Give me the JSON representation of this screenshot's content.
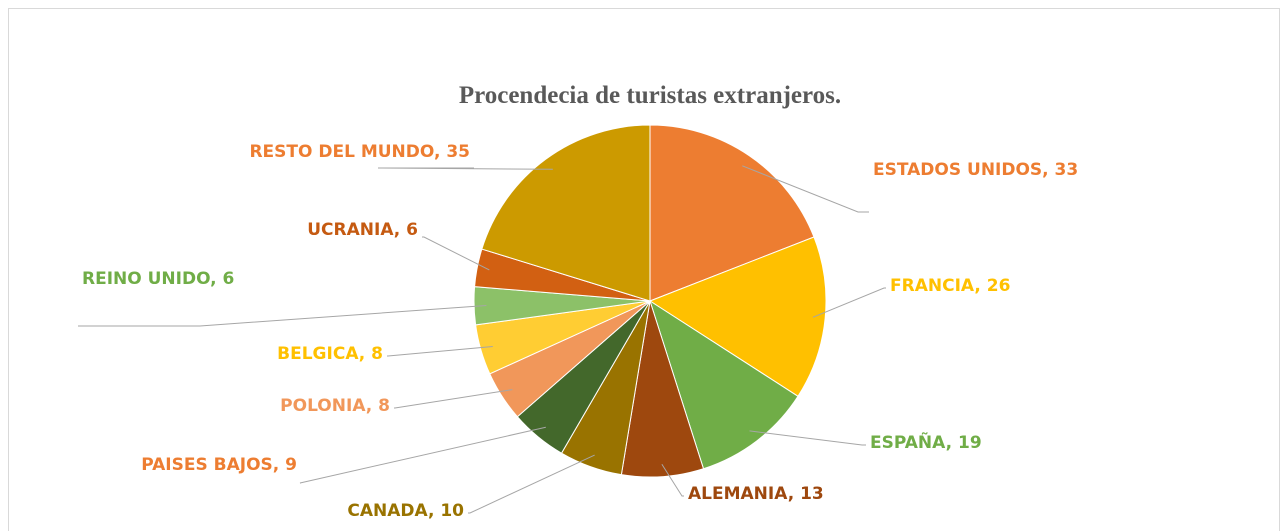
{
  "chart_data": {
    "type": "pie",
    "title": "Procendecia de turistas extranjeros.",
    "values": [
      33,
      26,
      19,
      13,
      10,
      9,
      8,
      8,
      6,
      6,
      35
    ],
    "value_labels": [
      "ESTADOS UNIDOS, 33",
      "FRANCIA, 26",
      "ESPAÑA, 19",
      "ALEMANIA, 13",
      "CANADA, 10",
      "PAISES BAJOS, 9",
      "POLONIA, 8",
      "BELGICA, 8",
      "REINO UNIDO, 6",
      "UCRANIA, 6",
      "RESTO DEL MUNDO, 35"
    ],
    "colors": [
      "#ed7d31",
      "#ffc000",
      "#70ad47",
      "#9e480e",
      "#997300",
      "#43682b",
      "#f1975a",
      "#ffcd33",
      "#8cc168",
      "#d26012",
      "#cc9a00"
    ],
    "label_colors": [
      "#ed7d31",
      "#ffc000",
      "#70ad47",
      "#9e480e",
      "#997300",
      "#ed7d31",
      "#f1975a",
      "#ffc000",
      "#70ad47",
      "#c55a11",
      "#ed7d31"
    ]
  }
}
